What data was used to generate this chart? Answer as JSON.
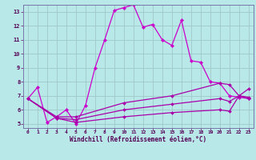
{
  "xlabel": "Windchill (Refroidissement éolien,°C)",
  "background_color": "#b8e8e8",
  "grid_color": "#a0c8c8",
  "line_color1": "#cc00cc",
  "line_color2": "#aa00aa",
  "xlim": [
    -0.5,
    23.5
  ],
  "ylim": [
    4.7,
    13.5
  ],
  "yticks": [
    5,
    6,
    7,
    8,
    9,
    10,
    11,
    12,
    13
  ],
  "xticks": [
    0,
    1,
    2,
    3,
    4,
    5,
    6,
    7,
    8,
    9,
    10,
    11,
    12,
    13,
    14,
    15,
    16,
    17,
    18,
    19,
    20,
    21,
    22,
    23
  ],
  "series1_x": [
    0,
    1,
    2,
    3,
    4,
    5,
    6,
    7,
    8,
    9,
    10,
    11,
    12,
    13,
    14,
    15,
    16,
    17,
    18,
    19,
    20,
    21,
    22,
    23
  ],
  "series1_y": [
    6.8,
    7.6,
    5.1,
    5.5,
    6.0,
    5.0,
    6.3,
    9.0,
    11.0,
    13.1,
    13.3,
    13.5,
    11.9,
    12.1,
    11.0,
    10.6,
    12.4,
    9.5,
    9.4,
    8.0,
    7.9,
    7.0,
    6.9,
    6.8
  ],
  "series2_x": [
    0,
    3,
    5,
    10,
    15,
    20,
    21,
    22,
    23
  ],
  "series2_y": [
    6.8,
    5.4,
    5.1,
    5.5,
    5.8,
    6.0,
    5.9,
    7.0,
    6.8
  ],
  "series3_x": [
    0,
    3,
    5,
    10,
    15,
    20,
    21,
    22,
    23
  ],
  "series3_y": [
    6.8,
    5.4,
    5.3,
    6.0,
    6.4,
    6.8,
    6.6,
    7.0,
    6.9
  ],
  "series4_x": [
    0,
    3,
    5,
    10,
    15,
    20,
    21,
    22,
    23
  ],
  "series4_y": [
    6.8,
    5.5,
    5.5,
    6.5,
    7.0,
    7.9,
    7.8,
    7.0,
    7.5
  ]
}
